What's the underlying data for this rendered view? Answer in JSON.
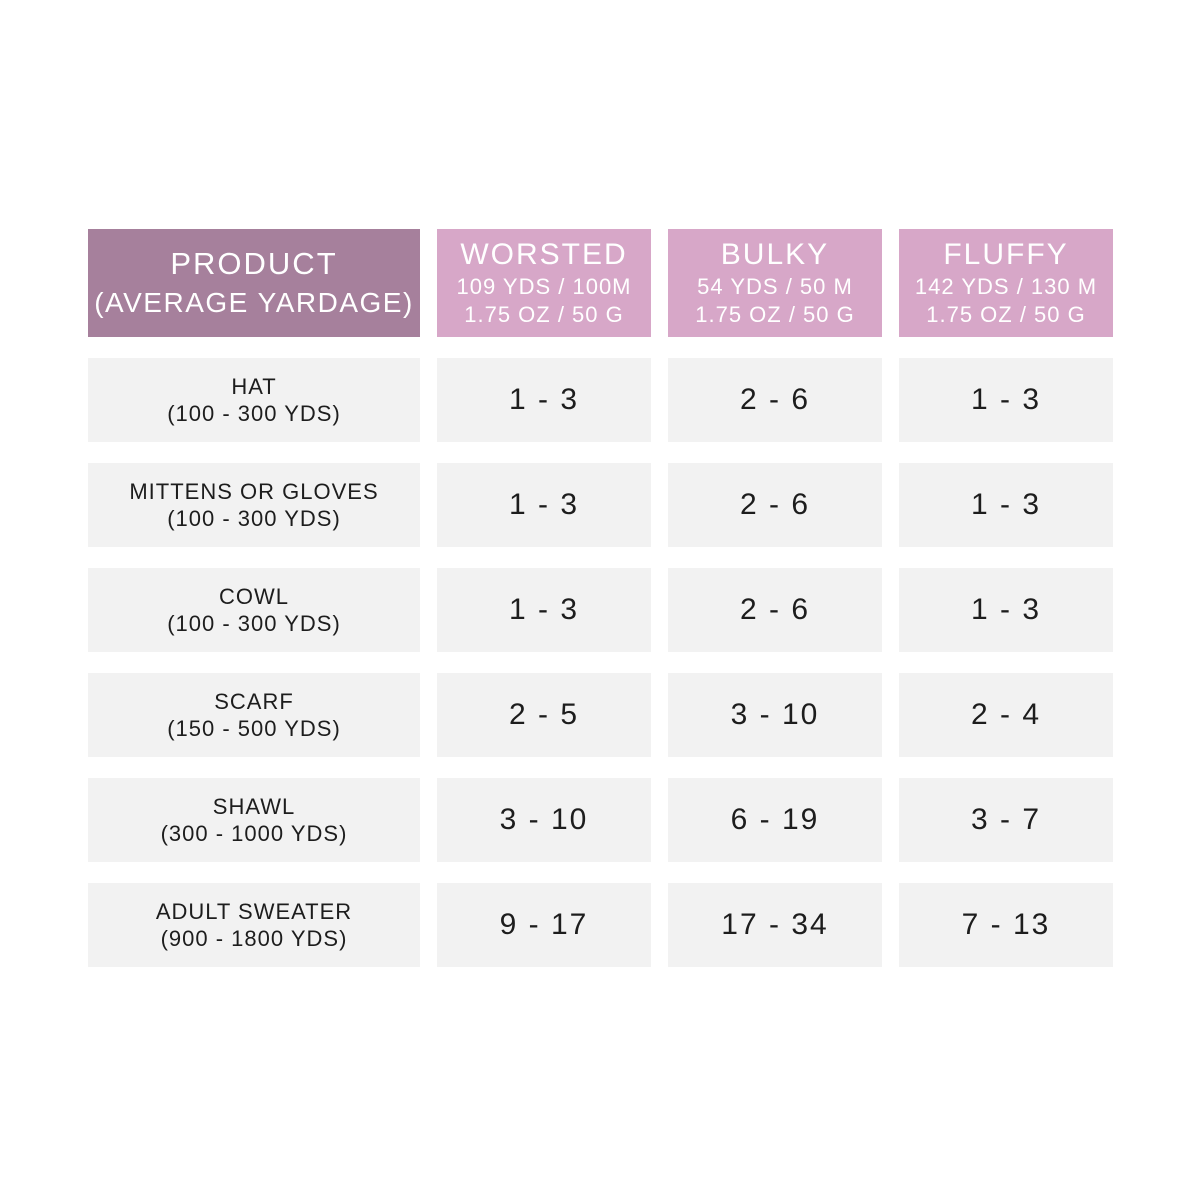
{
  "colors": {
    "product_header_bg": "#a6809c",
    "yarn_header_bg": "#d7a7c8",
    "row_bg": "#f2f2f2",
    "header_text": "#ffffff",
    "row_text": "#1d1d1d",
    "page_bg": "#ffffff"
  },
  "table": {
    "product_header": {
      "line1": "PRODUCT",
      "line2": "(AVERAGE YARDAGE)"
    },
    "columns": [
      {
        "name": "WORSTED",
        "yardage": "109 YDS / 100M",
        "weight": "1.75 OZ / 50 G"
      },
      {
        "name": "BULKY",
        "yardage": "54 YDS / 50 M",
        "weight": "1.75 OZ / 50 G"
      },
      {
        "name": "FLUFFY",
        "yardage": "142 YDS / 130 M",
        "weight": "1.75 OZ / 50 G"
      }
    ],
    "rows": [
      {
        "product": "HAT",
        "yardage": "(100 - 300 YDS)",
        "worsted": "1 - 3",
        "bulky": "2 - 6",
        "fluffy": "1 - 3"
      },
      {
        "product": "MITTENS OR GLOVES",
        "yardage": "(100 - 300 YDS)",
        "worsted": "1 - 3",
        "bulky": "2 - 6",
        "fluffy": "1 - 3"
      },
      {
        "product": "COWL",
        "yardage": "(100 - 300 YDS)",
        "worsted": "1 - 3",
        "bulky": "2 - 6",
        "fluffy": "1 - 3"
      },
      {
        "product": "SCARF",
        "yardage": "(150 - 500 YDS)",
        "worsted": "2 - 5",
        "bulky": "3 - 10",
        "fluffy": "2 - 4"
      },
      {
        "product": "SHAWL",
        "yardage": "(300 - 1000 YDS)",
        "worsted": "3 - 10",
        "bulky": "6 - 19",
        "fluffy": "3 - 7"
      },
      {
        "product": "ADULT SWEATER",
        "yardage": "(900 - 1800 YDS)",
        "worsted": "9 - 17",
        "bulky": "17 - 34",
        "fluffy": "7 - 13"
      }
    ]
  },
  "chart_data": {
    "type": "table",
    "title": "Yarn skeins needed per product",
    "columns": [
      "PRODUCT (AVERAGE YARDAGE)",
      "WORSTED 109 YDS / 100M 1.75 OZ / 50 G",
      "BULKY 54 YDS / 50 M 1.75 OZ / 50 G",
      "FLUFFY 142 YDS / 130 M 1.75 OZ / 50 G"
    ],
    "rows": [
      [
        "HAT (100 - 300 YDS)",
        "1 - 3",
        "2 - 6",
        "1 - 3"
      ],
      [
        "MITTENS OR GLOVES (100 - 300 YDS)",
        "1 - 3",
        "2 - 6",
        "1 - 3"
      ],
      [
        "COWL (100 - 300 YDS)",
        "1 - 3",
        "2 - 6",
        "1 - 3"
      ],
      [
        "SCARF (150 - 500 YDS)",
        "2 - 5",
        "3 - 10",
        "2 - 4"
      ],
      [
        "SHAWL (300 - 1000 YDS)",
        "3 - 10",
        "6 - 19",
        "3 - 7"
      ],
      [
        "ADULT SWEATER (900 - 1800 YDS)",
        "9 - 17",
        "17 - 34",
        "7 - 13"
      ]
    ]
  }
}
